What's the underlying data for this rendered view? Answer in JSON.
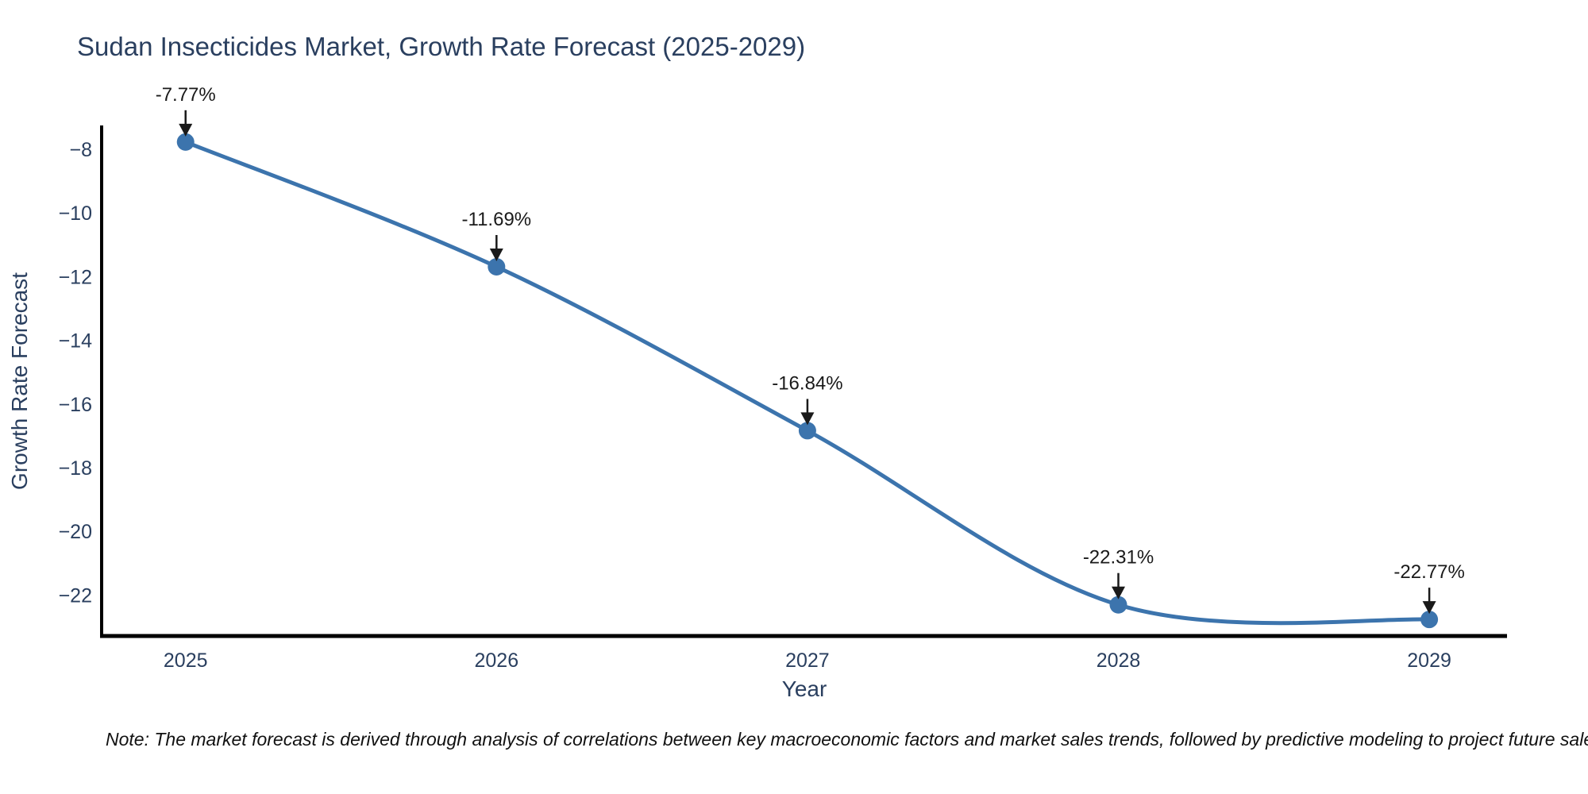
{
  "note": "Note: The market forecast is derived through analysis of correlations between key macroeconomic factors and market sales trends, followed by predictive modeling to project future sales",
  "chart_data": {
    "type": "line",
    "title": "Sudan Insecticides Market, Growth Rate Forecast (2025-2029)",
    "xlabel": "Year",
    "ylabel": "Growth Rate Forecast",
    "x": [
      2025,
      2026,
      2027,
      2028,
      2029
    ],
    "y": [
      -7.77,
      -11.69,
      -16.84,
      -22.31,
      -22.77
    ],
    "point_labels": [
      "-7.77%",
      "-11.69%",
      "-16.84%",
      "-22.31%",
      "-22.77%"
    ],
    "xticks": [
      2025,
      2026,
      2027,
      2028,
      2029
    ],
    "yticks": [
      -8,
      -10,
      -12,
      -14,
      -16,
      -18,
      -20,
      -22
    ],
    "xlim": [
      2024.73,
      2029.25
    ],
    "ylim": [
      -23.29,
      -7.3
    ],
    "grid": false,
    "legend": null,
    "curve": "spline",
    "line_color": "#3c74ad",
    "marker_color": "#3c74ad",
    "axis_line_color": "#000000",
    "axis_text_color": "#2a3f5f",
    "annotation_color": "#1a1a1a"
  }
}
